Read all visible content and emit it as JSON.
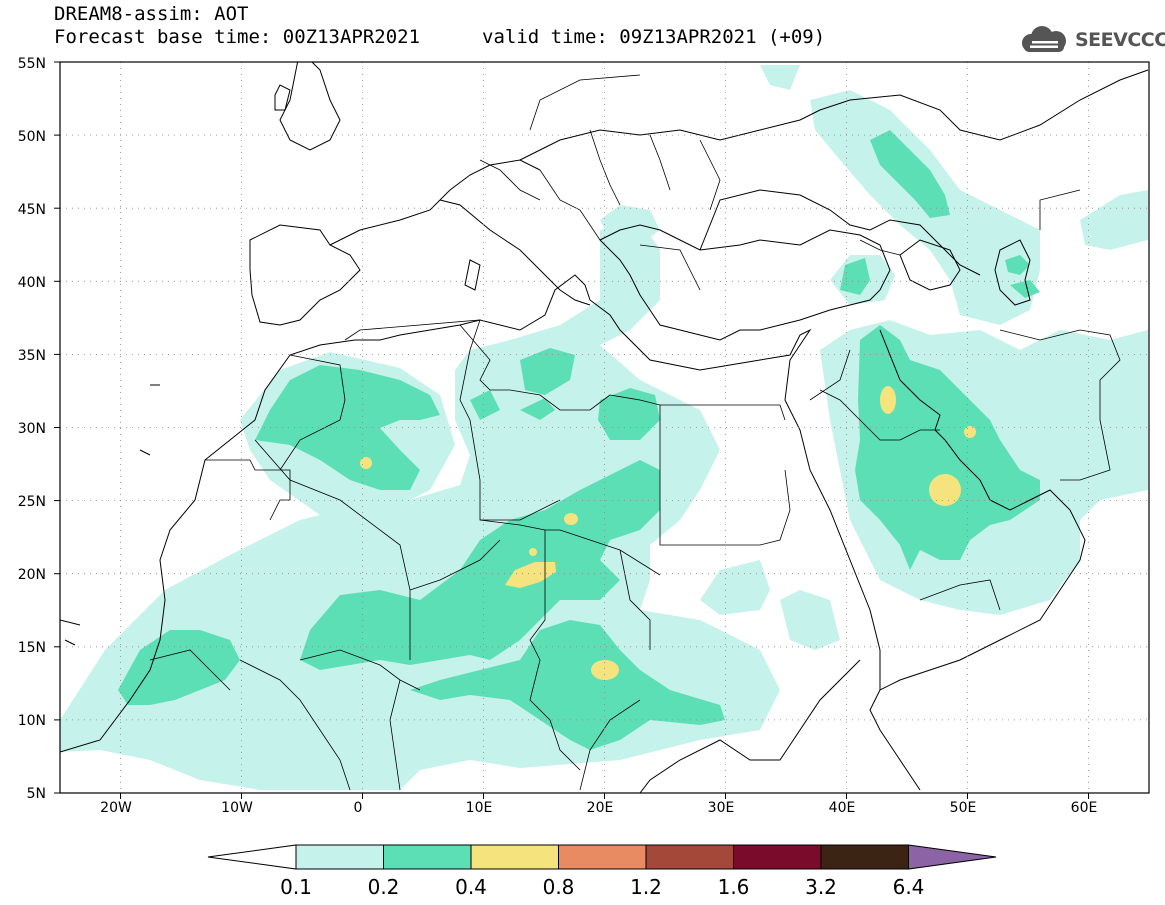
{
  "header": {
    "line1": "DREAM8-assim: AOT",
    "line2": "Forecast base time: 00Z13APR2021",
    "line3": "valid time: 09Z13APR2021 (+09)"
  },
  "logo": {
    "text": "SEEVCCC",
    "icon": "cloud-icon"
  },
  "map": {
    "lon_range": [
      -25,
      65
    ],
    "lat_range": [
      5,
      55
    ],
    "lat_ticks": [
      "5N",
      "10N",
      "15N",
      "20N",
      "25N",
      "30N",
      "35N",
      "40N",
      "45N",
      "50N",
      "55N"
    ],
    "lon_ticks": [
      "20W",
      "10W",
      "0",
      "10E",
      "20E",
      "30E",
      "40E",
      "50E",
      "60E"
    ],
    "grid": "dotted",
    "coastlines": true
  },
  "colorbar": {
    "labels": [
      "0.1",
      "0.2",
      "0.4",
      "0.8",
      "1.2",
      "1.6",
      "3.2",
      "6.4"
    ],
    "colors": [
      "#ffffff",
      "#c6f2ec",
      "#5ddfb5",
      "#f5e47d",
      "#e88a62",
      "#a4493a",
      "#7b0b2a",
      "#3b2414",
      "#8c63a5"
    ]
  }
}
